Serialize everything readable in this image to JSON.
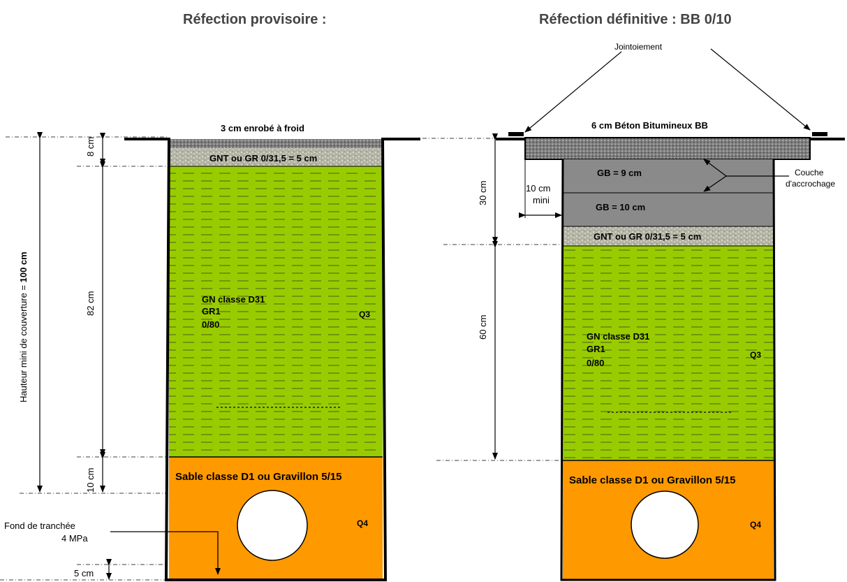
{
  "titles": {
    "left": "Réfection provisoire :",
    "right": "Réfection définitive : BB 0/10"
  },
  "left": {
    "surface_label": "3 cm enrobé à froid",
    "gnt_layer": "GNT ou GR 0/31,5   = 5 cm",
    "fill_line1": "GN classe D31",
    "fill_line2": "GR1",
    "fill_line3": "0/80",
    "fill_quality": "Q3",
    "bed_label": "Sable classe D1 ou Gravillon 5/15",
    "bed_quality": "Q4",
    "dim_8": "8 cm",
    "dim_82": "82 cm",
    "dim_10": "10 cm",
    "dim_5": "5 cm",
    "dim_total": "Hauteur mini de couverture = ",
    "dim_total_bold": "100 cm",
    "bottom_label1": "Fond de tranchée",
    "bottom_label2": "4 MPa"
  },
  "right": {
    "jointing": "Jointoiement",
    "surface_label": "6 cm Béton Bitumineux BB",
    "gb1": "GB = 9 cm",
    "gb2": "GB = 10 cm",
    "tack1": "Couche",
    "tack2": "d'accrochage",
    "gnt_layer": "GNT ou GR 0/31,5   = 5 cm",
    "overlap1": "10 cm",
    "overlap2": "mini",
    "dim_30": "30 cm",
    "dim_60": "60 cm",
    "fill_line1": "GN classe D31",
    "fill_line2": "GR1",
    "fill_line3": "0/80",
    "fill_quality": "Q3",
    "bed_label": "Sable classe D1 ou Gravillon 5/15",
    "bed_quality": "Q4"
  },
  "colors": {
    "fill_green": "#99cc00",
    "dash_green": "#6a8f00",
    "bed_orange": "#ff9900",
    "bitumen": "#8c8c8c",
    "gb_grey": "#8a8a8a",
    "gnt_grey": "#b0b0a0"
  }
}
